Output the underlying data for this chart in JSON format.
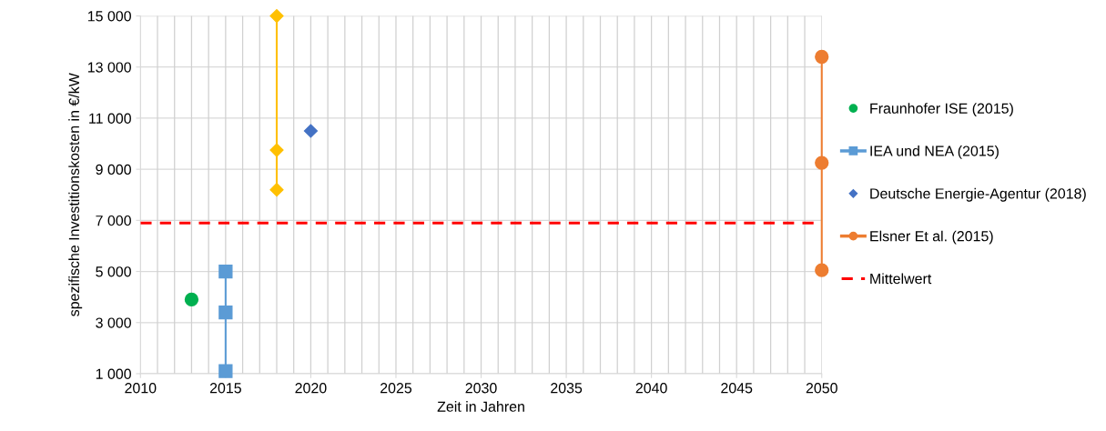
{
  "chart_data": {
    "type": "scatter",
    "xlabel": "Zeit in Jahren",
    "ylabel": "spezifische Investitionskosten in €/kW",
    "xlim": [
      2010,
      2050
    ],
    "xticks": [
      2010,
      2015,
      2020,
      2025,
      2030,
      2035,
      2040,
      2045,
      2050
    ],
    "ylim": [
      1000,
      15000
    ],
    "yticks": [
      {
        "value": 1000,
        "label": "1 000"
      },
      {
        "value": 3000,
        "label": "3 000"
      },
      {
        "value": 5000,
        "label": "5 000"
      },
      {
        "value": 7000,
        "label": "7 000"
      },
      {
        "value": 9000,
        "label": "9 000"
      },
      {
        "value": 11000,
        "label": "11 000"
      },
      {
        "value": 13000,
        "label": "13 000"
      },
      {
        "value": 15000,
        "label": "15 000"
      }
    ],
    "grid": true,
    "legend": "right",
    "series": [
      {
        "name": "Fraunhofer ISE (2015)",
        "marker": "circle",
        "color": "#00b050",
        "x": [
          2013
        ],
        "values": [
          3900
        ]
      },
      {
        "name": "IEA und NEA (2015)",
        "type": "line",
        "marker": "square",
        "color": "#5b9bd5",
        "x": [
          2015,
          2015,
          2015
        ],
        "values": [
          5000,
          3400,
          1100
        ]
      },
      {
        "name": "Deutsche Energie-Agentur (2018)",
        "marker": "diamond",
        "color": "#4472c4",
        "x": [
          2020
        ],
        "values": [
          10500
        ]
      },
      {
        "type": "line",
        "marker": "diamond",
        "color": "#ffc000",
        "x": [
          2018,
          2018,
          2018
        ],
        "values": [
          15000,
          9750,
          8200
        ]
      },
      {
        "name": "Elsner Et al. (2015)",
        "type": "line",
        "marker": "circle",
        "color": "#ed7d31",
        "x": [
          2050,
          2050,
          2050
        ],
        "values": [
          13400,
          9250,
          5050
        ]
      }
    ],
    "ref_lines": [
      {
        "axis": "y",
        "value": 6900,
        "label": "Mittelwert",
        "color": "#ff0000",
        "line_style": "dashed"
      }
    ]
  }
}
